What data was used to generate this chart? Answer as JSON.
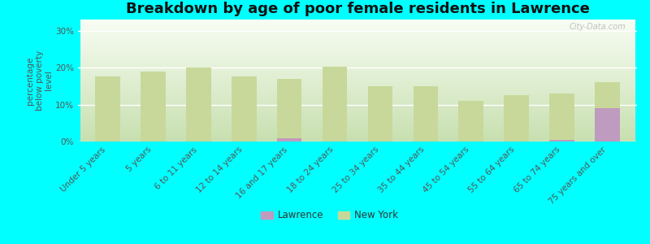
{
  "title": "Breakdown by age of poor female residents in Lawrence",
  "ylabel": "percentage\nbelow poverty\nlevel",
  "background_color": "#00ffff",
  "categories": [
    "Under 5 years",
    "5 years",
    "6 to 11 years",
    "12 to 14 years",
    "16 and 17 years",
    "18 to 24 years",
    "25 to 34 years",
    "35 to 44 years",
    "45 to 54 years",
    "55 to 64 years",
    "65 to 74 years",
    "75 years and over"
  ],
  "ny_values": [
    17.5,
    19.0,
    20.0,
    17.5,
    17.0,
    20.3,
    15.0,
    15.0,
    11.0,
    12.5,
    13.0,
    16.0
  ],
  "lawrence_values": [
    0,
    0,
    0,
    0,
    0.8,
    0,
    0,
    0,
    0,
    0,
    0.5,
    9.0
  ],
  "ny_color": "#c8d89a",
  "lawrence_color": "#bf9bbf",
  "plot_bg_color_top": "#f0f5e8",
  "plot_bg_color_bottom": "#d8ecc8",
  "ylim": [
    0,
    33
  ],
  "yticks": [
    0,
    10,
    20,
    30
  ],
  "ytick_labels": [
    "0%",
    "10%",
    "20%",
    "30%"
  ],
  "watermark": "City-Data.com",
  "legend_lawrence": "Lawrence",
  "legend_ny": "New York",
  "title_fontsize": 13,
  "label_fontsize": 7.5,
  "axis_label_fontsize": 7.5
}
